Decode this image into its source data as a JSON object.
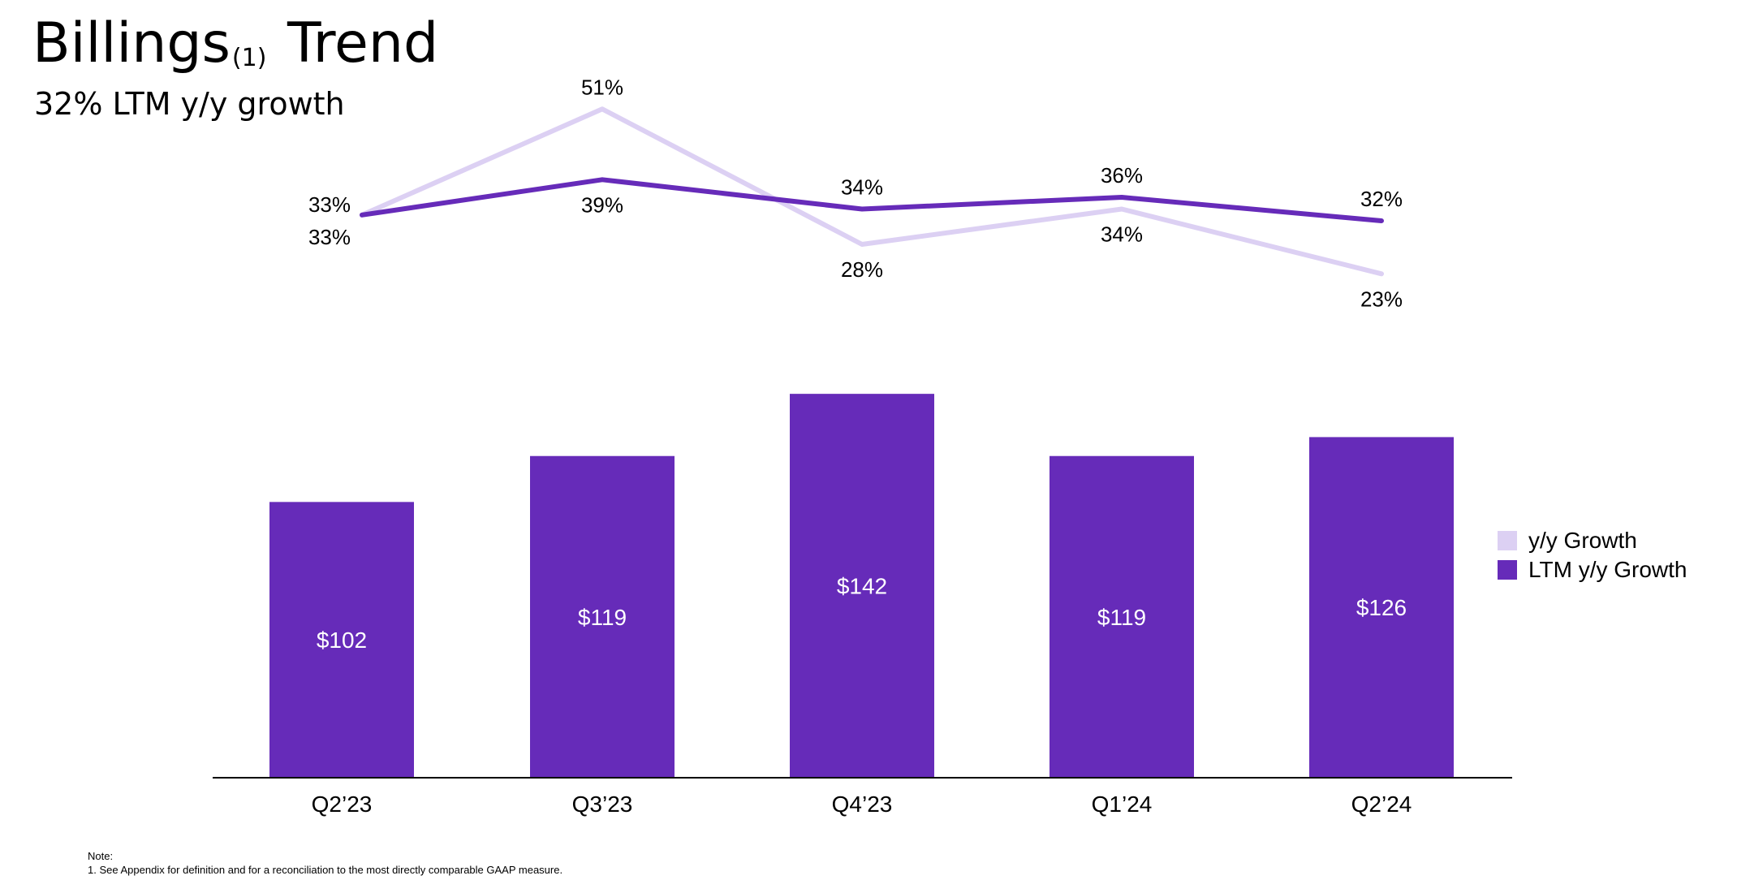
{
  "header": {
    "title_main": "Billings",
    "title_sup": "(1)",
    "title_end": "Trend",
    "subtitle": "32% LTM y/y growth"
  },
  "legend": {
    "items": [
      {
        "label": "y/y Growth",
        "color": "#dcd0f3"
      },
      {
        "label": "LTM y/y Growth",
        "color": "#662bb9"
      }
    ]
  },
  "note": {
    "heading": "Note:",
    "line1": "1.   See Appendix for definition and for a reconciliation to the most directly comparable GAAP measure."
  },
  "colors": {
    "bar": "#662bb9",
    "ltm_line": "#662bb9",
    "yy_line": "#dcd0f3",
    "axis": "#000000"
  },
  "chart_data": {
    "type": "bar",
    "categories": [
      "Q2’23",
      "Q3’23",
      "Q4’23",
      "Q1’24",
      "Q2’24"
    ],
    "bars": {
      "values": [
        102,
        119,
        142,
        119,
        126
      ],
      "labels": [
        "$102",
        "$119",
        "$142",
        "$119",
        "$126"
      ]
    },
    "series": [
      {
        "name": "y/y Growth",
        "type": "line",
        "values": [
          33,
          51,
          28,
          34,
          23
        ],
        "labels": [
          "33%",
          "51%",
          "28%",
          "34%",
          "23%"
        ]
      },
      {
        "name": "LTM y/y Growth",
        "type": "line",
        "values": [
          33,
          39,
          34,
          36,
          32
        ],
        "labels": [
          "33%",
          "39%",
          "34%",
          "36%",
          "32%"
        ]
      }
    ],
    "title": "Billings(1) Trend",
    "subtitle": "32% LTM y/y growth",
    "legend_position": "right",
    "grid": false
  }
}
